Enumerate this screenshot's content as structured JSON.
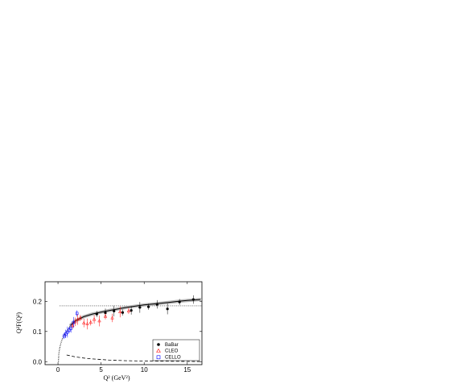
{
  "chart_data": {
    "type": "scatter",
    "xlabel": "Q² (GeV²)",
    "ylabel": "Q²F(Q²)",
    "xlim": [
      -1.5,
      16.7
    ],
    "ylim": [
      -0.01,
      0.265
    ],
    "x_ticks": [
      0,
      5,
      10,
      15
    ],
    "y_ticks": [
      0.0,
      0.1,
      0.2
    ],
    "y_tick_labels": [
      "0.0",
      "0.1",
      "0.2"
    ],
    "grid": false,
    "legend_position": "bottom-right",
    "reference_line_y": 0.185,
    "series": [
      {
        "name": "BaBar",
        "marker": "filled-circle",
        "color": "#000000",
        "x": [
          4.5,
          5.5,
          6.5,
          7.5,
          8.5,
          9.5,
          10.5,
          11.5,
          12.7,
          14.1,
          15.7
        ],
        "y": [
          0.158,
          0.162,
          0.168,
          0.163,
          0.17,
          0.18,
          0.182,
          0.19,
          0.175,
          0.198,
          0.206
        ]
      },
      {
        "name": "CLEO",
        "marker": "open-triangle",
        "color": "#ff0000",
        "x": [
          1.7,
          2.0,
          2.3,
          2.6,
          3.0,
          3.4,
          3.8,
          4.2,
          4.8,
          5.5,
          6.3,
          7.2,
          8.2
        ],
        "y": [
          0.12,
          0.132,
          0.14,
          0.145,
          0.128,
          0.125,
          0.13,
          0.14,
          0.135,
          0.15,
          0.145,
          0.165,
          0.168
        ]
      },
      {
        "name": "CELLO",
        "marker": "open-square",
        "color": "#0000ff",
        "x": [
          0.7,
          0.9,
          1.1,
          1.3,
          1.5,
          1.8,
          2.2
        ],
        "y": [
          0.085,
          0.092,
          0.098,
          0.105,
          0.11,
          0.13,
          0.16
        ]
      },
      {
        "name": "",
        "style": "solid-curve-with-band",
        "color": "#000000",
        "x": [
          1.5,
          2,
          3,
          4,
          5,
          6,
          7,
          8,
          9,
          10,
          11,
          12,
          13,
          14,
          15,
          16.5
        ],
        "y": [
          0.122,
          0.135,
          0.149,
          0.158,
          0.164,
          0.17,
          0.175,
          0.18,
          0.184,
          0.188,
          0.191,
          0.194,
          0.197,
          0.2,
          0.203,
          0.206
        ]
      },
      {
        "name": "",
        "style": "dotted-curve",
        "color": "#000000",
        "x": [
          0.05,
          0.1,
          0.2,
          0.3,
          0.5,
          0.7,
          1.0,
          1.3,
          1.5
        ],
        "y": [
          0.0,
          0.025,
          0.045,
          0.058,
          0.075,
          0.087,
          0.1,
          0.112,
          0.122
        ]
      },
      {
        "name": "",
        "style": "dashed-curve",
        "color": "#000000",
        "x": [
          1.0,
          1.5,
          2,
          3,
          4,
          5,
          6,
          8,
          10,
          12,
          14,
          16.5
        ],
        "y": [
          0.022,
          0.019,
          0.016,
          0.012,
          0.009,
          0.007,
          0.005,
          0.003,
          0.002,
          0.0015,
          0.001,
          0.0005
        ]
      }
    ]
  }
}
